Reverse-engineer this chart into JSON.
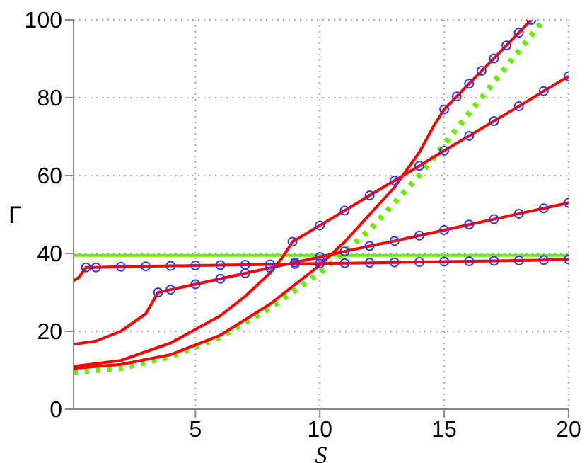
{
  "chart_data": {
    "type": "line",
    "xlabel": "S",
    "ylabel": "Γ",
    "xlim": [
      0.1,
      20
    ],
    "xticks": [
      5,
      10,
      15,
      20
    ],
    "ylim": [
      0,
      100
    ],
    "yticks": [
      0,
      20,
      40,
      60,
      80,
      100
    ],
    "grid": true,
    "marker": "none",
    "series": [
      {
        "color": "#66ee00",
        "x": [
          0.1,
          20
        ],
        "values": [
          39.5,
          39.5
        ]
      },
      {
        "color": "#66ee00",
        "line_style": "dotted",
        "x": [
          0.1,
          2,
          4,
          6,
          8,
          10,
          12,
          14,
          16,
          18,
          19
        ],
        "values": [
          9.5,
          10.5,
          13.5,
          18.5,
          26,
          35,
          46,
          60,
          76,
          92,
          100
        ]
      },
      {
        "type": "scatter",
        "marker": "circle",
        "color": "#3333ff",
        "x": [
          0.6,
          1,
          2,
          3,
          4,
          5,
          6,
          7,
          8,
          9,
          10,
          11,
          12,
          13,
          14,
          15,
          16,
          17,
          18,
          19,
          20
        ],
        "values": [
          36.4,
          36.4,
          36.6,
          36.7,
          36.8,
          36.9,
          37,
          37.1,
          37.2,
          37.3,
          37.4,
          37.5,
          37.6,
          37.7,
          37.8,
          37.9,
          38,
          38.1,
          38.2,
          38.3,
          38.5
        ]
      },
      {
        "type": "scatter",
        "marker": "circle",
        "color": "#3333ff",
        "x": [
          3.5,
          4,
          5,
          6,
          7,
          8,
          9,
          10,
          11,
          12,
          13,
          14,
          15,
          16,
          17,
          18,
          19,
          20
        ],
        "values": [
          30,
          30.7,
          32.1,
          33.5,
          34.9,
          36.3,
          37.7,
          39.1,
          40.5,
          41.9,
          43.2,
          44.6,
          46,
          47.4,
          48.8,
          50.2,
          51.6,
          53
        ]
      },
      {
        "type": "scatter",
        "marker": "circle",
        "color": "#3333ff",
        "x": [
          8.9,
          10,
          11,
          12,
          13,
          14,
          15,
          16,
          17,
          18,
          19,
          20
        ],
        "values": [
          43,
          47.2,
          51,
          54.9,
          58.7,
          62.5,
          66.4,
          70.2,
          74,
          77.8,
          81.7,
          85.5
        ]
      },
      {
        "type": "scatter",
        "marker": "circle",
        "color": "#3333ff",
        "x": [
          15,
          15.5,
          16,
          16.5,
          17,
          17.5,
          18,
          18.5
        ],
        "values": [
          77,
          80.3,
          83.6,
          86.9,
          90.1,
          93.4,
          96.7,
          100
        ]
      },
      {
        "color": "#ff0000",
        "x": [
          0.1,
          0.3,
          0.5,
          0.6,
          1,
          2,
          3,
          4,
          5,
          6,
          7,
          8,
          9,
          10,
          11,
          12,
          13,
          14,
          15,
          16,
          17,
          18,
          19,
          20
        ],
        "values": [
          33,
          33.8,
          35.5,
          36.4,
          36.4,
          36.6,
          36.7,
          36.8,
          36.9,
          37,
          37.1,
          37.2,
          37.3,
          37.4,
          37.5,
          37.6,
          37.7,
          37.8,
          37.9,
          38,
          38.1,
          38.2,
          38.3,
          38.5
        ]
      },
      {
        "color": "#ff0000",
        "x": [
          0.1,
          1,
          2,
          3,
          3.5,
          4,
          5,
          6,
          7,
          8,
          9,
          10,
          11,
          12,
          13,
          14,
          15,
          16,
          17,
          18,
          19,
          20
        ],
        "values": [
          16.7,
          17.5,
          20,
          24.5,
          30,
          30.7,
          32.1,
          33.5,
          34.9,
          36.3,
          37.7,
          39.1,
          40.5,
          41.9,
          43.2,
          44.6,
          46,
          47.4,
          48.8,
          50.2,
          51.6,
          53
        ]
      },
      {
        "color": "#ff0000",
        "x": [
          0.1,
          2,
          4,
          6,
          7,
          8,
          8.5,
          8.9,
          10,
          11,
          12,
          13,
          14,
          15,
          16,
          17,
          18,
          19,
          20
        ],
        "values": [
          11,
          12.5,
          17,
          24,
          29,
          35,
          39,
          43,
          47.2,
          51,
          54.9,
          58.7,
          62.5,
          66.4,
          70.2,
          74,
          77.8,
          81.7,
          85.5
        ]
      },
      {
        "color": "#ff0000",
        "x": [
          0.1,
          2,
          4,
          6,
          8,
          10,
          11,
          12,
          13,
          14,
          14.6,
          15,
          16,
          17,
          18,
          18.5
        ],
        "values": [
          10.5,
          11.5,
          14,
          19,
          27,
          37,
          43,
          50,
          57,
          66,
          73,
          77,
          83.6,
          90.1,
          96.7,
          100
        ]
      }
    ]
  }
}
